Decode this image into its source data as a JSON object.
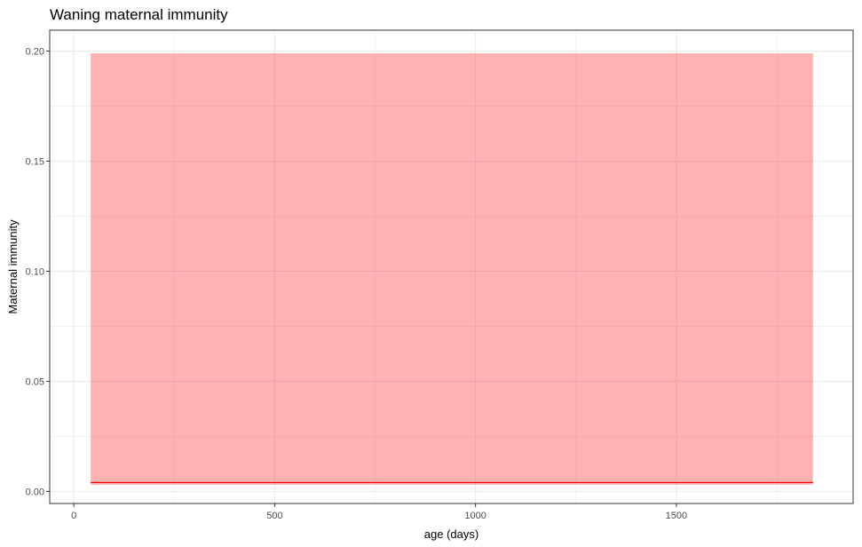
{
  "chart_data": {
    "type": "area",
    "title": "Waning maternal immunity",
    "xlabel": "age (days)",
    "ylabel": "Maternal immunity",
    "xlim": [
      -60,
      1940
    ],
    "ylim": [
      -0.0055,
      0.2095
    ],
    "xticks": [
      0,
      500,
      1000,
      1500
    ],
    "xtick_labels": [
      "0",
      "500",
      "1000",
      "1500"
    ],
    "yticks": [
      0.0,
      0.05,
      0.1,
      0.15,
      0.2
    ],
    "ytick_labels": [
      "0.00",
      "0.05",
      "0.10",
      "0.15",
      "0.20"
    ],
    "grid": true,
    "series": [
      {
        "kind": "line",
        "color": "#ff0000",
        "x": [
          42,
          1840
        ],
        "y": [
          0.004,
          0.004
        ]
      },
      {
        "kind": "ribbon",
        "color": "#ff0000",
        "opacity": 0.3,
        "x": [
          42,
          1840
        ],
        "ymin": [
          0.003,
          0.003
        ],
        "ymax": [
          0.199,
          0.199
        ]
      }
    ]
  }
}
